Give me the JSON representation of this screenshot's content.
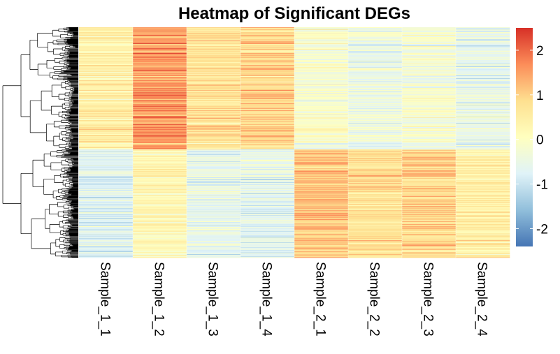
{
  "chart_data": {
    "type": "heatmap",
    "title": "Heatmap of Significant DEGs",
    "xlabel": "",
    "ylabel": "",
    "samples": [
      "Sample_1_1",
      "Sample_1_2",
      "Sample_1_3",
      "Sample_1_4",
      "Sample_2_1",
      "Sample_2_2",
      "Sample_2_3",
      "Sample_2_4"
    ],
    "gene_clusters": [
      {
        "fraction": 0.53,
        "column_means": [
          0.45,
          1.55,
          0.75,
          0.95,
          -0.15,
          -0.45,
          -0.2,
          -0.55
        ]
      },
      {
        "fraction": 0.47,
        "column_means": [
          -0.75,
          0.25,
          -0.55,
          -0.65,
          1.15,
          0.8,
          0.95,
          0.5
        ]
      }
    ],
    "colorbar": {
      "range": [
        -2.4,
        2.5
      ],
      "ticks": [
        "2",
        "1",
        "0",
        "-1",
        "-2"
      ],
      "tick_values": [
        2,
        1,
        0,
        -1,
        -2
      ],
      "colors": [
        "#4575b4",
        "#91bfdb",
        "#e0f3f8",
        "#ffffbf",
        "#fee090",
        "#fc8d59",
        "#d73027"
      ]
    },
    "row_dendrogram": true,
    "column_dendrogram": false,
    "grid": false
  }
}
